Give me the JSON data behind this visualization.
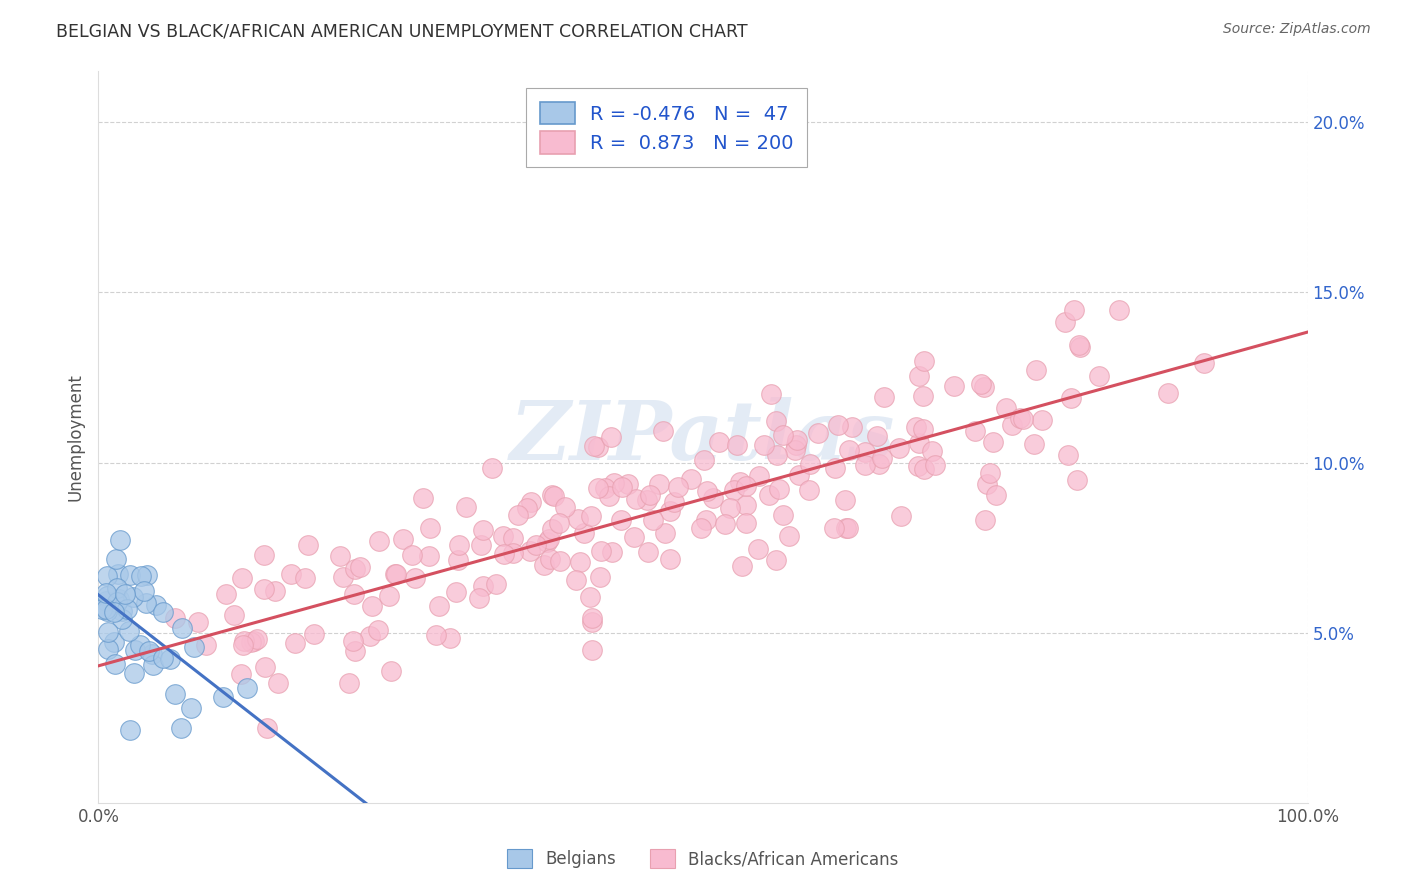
{
  "title": "BELGIAN VS BLACK/AFRICAN AMERICAN UNEMPLOYMENT CORRELATION CHART",
  "source": "Source: ZipAtlas.com",
  "ylabel": "Unemployment",
  "xlim": [
    0.0,
    1.0
  ],
  "ylim": [
    0.0,
    0.215
  ],
  "xtick_positions": [
    0.0,
    1.0
  ],
  "xtick_labels": [
    "0.0%",
    "100.0%"
  ],
  "ytick_values": [
    0.05,
    0.1,
    0.15,
    0.2
  ],
  "ytick_labels": [
    "5.0%",
    "10.0%",
    "15.0%",
    "20.0%"
  ],
  "watermark": "ZIPatlas",
  "belgian_color": "#a8c8e8",
  "black_color": "#f8bbd0",
  "belgian_edge_color": "#6699cc",
  "black_edge_color": "#e8a0b0",
  "belgian_line_color": "#4472c4",
  "black_line_color": "#d45060",
  "legend_R_belgian": "-0.476",
  "legend_N_belgian": "47",
  "legend_R_black": "0.873",
  "legend_N_black": "200",
  "legend_text_color": "#2255cc",
  "tick_label_color": "#3366cc",
  "axis_label_color": "#555555",
  "background_color": "#ffffff",
  "grid_color": "#cccccc",
  "title_color": "#333333",
  "source_color": "#666666",
  "bottom_legend_color": "#555555"
}
